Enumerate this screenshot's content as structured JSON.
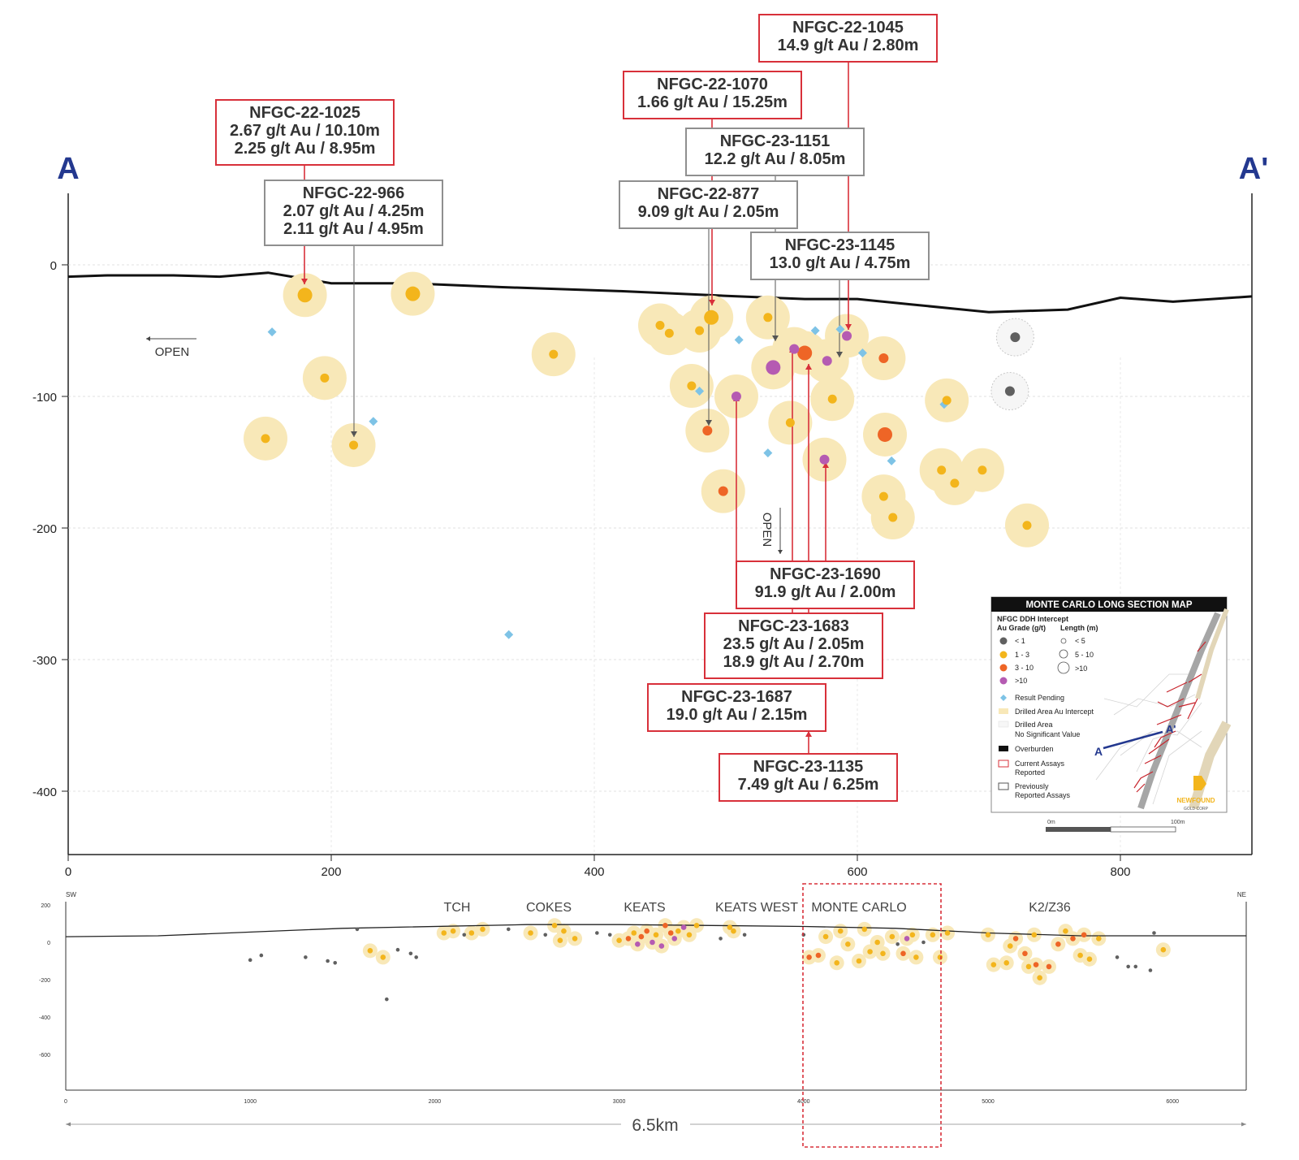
{
  "section": {
    "label_a": "A",
    "label_a_prime": "A'",
    "y_ticks": [
      "0",
      "-100",
      "-200",
      "-300",
      "-400"
    ],
    "x_ticks": [
      "0",
      "200",
      "400",
      "600",
      "800"
    ],
    "open_left": "OPEN",
    "open_down": "OPEN"
  },
  "surface_profile": [
    [
      0,
      -9
    ],
    [
      30,
      -8
    ],
    [
      80,
      -8
    ],
    [
      115,
      -9
    ],
    [
      152,
      -6
    ],
    [
      170,
      -9
    ],
    [
      200,
      -14
    ],
    [
      260,
      -14
    ],
    [
      330,
      -17
    ],
    [
      420,
      -20
    ],
    [
      510,
      -24
    ],
    [
      560,
      -26
    ],
    [
      600,
      -26
    ],
    [
      640,
      -30
    ],
    [
      700,
      -36
    ],
    [
      760,
      -34
    ],
    [
      800,
      -25
    ],
    [
      840,
      -28
    ],
    [
      900,
      -24
    ]
  ],
  "colors": {
    "halo": "#f8e8b8",
    "low": "#606060",
    "mid": "#f3b51c",
    "high": "#ee6526",
    "vhigh": "#b55bb2",
    "pending": "#7ec3e6",
    "current": "#d8303a",
    "previous": "#8f8f8f",
    "ink": "#23388f"
  },
  "intercepts": [
    {
      "x": 180,
      "y": -23,
      "grade": "mid",
      "len": "long"
    },
    {
      "x": 262,
      "y": -22,
      "grade": "mid",
      "len": "long"
    },
    {
      "x": 195,
      "y": -86,
      "grade": "mid",
      "len": "long"
    },
    {
      "x": 150,
      "y": -132,
      "grade": "mid",
      "len": "long"
    },
    {
      "x": 217,
      "y": -137,
      "grade": "mid",
      "len": "long"
    },
    {
      "x": 369,
      "y": -68,
      "grade": "mid",
      "len": "long"
    },
    {
      "x": 450,
      "y": -46,
      "grade": "mid",
      "len": "long"
    },
    {
      "x": 457,
      "y": -52,
      "grade": "mid",
      "len": "long"
    },
    {
      "x": 480,
      "y": -50,
      "grade": "mid",
      "len": "long"
    },
    {
      "x": 489,
      "y": -40,
      "grade": "mid",
      "len": "long"
    },
    {
      "x": 474,
      "y": -92,
      "grade": "mid",
      "len": "long"
    },
    {
      "x": 532,
      "y": -40,
      "grade": "mid",
      "len": "long"
    },
    {
      "x": 549,
      "y": -120,
      "grade": "mid",
      "len": "long"
    },
    {
      "x": 581,
      "y": -102,
      "grade": "mid",
      "len": "long"
    },
    {
      "x": 668,
      "y": -103,
      "grade": "mid",
      "len": "long"
    },
    {
      "x": 664,
      "y": -156,
      "grade": "mid",
      "len": "long"
    },
    {
      "x": 674,
      "y": -166,
      "grade": "mid",
      "len": "long"
    },
    {
      "x": 695,
      "y": -156,
      "grade": "mid",
      "len": "long"
    },
    {
      "x": 620,
      "y": -176,
      "grade": "mid",
      "len": "long"
    },
    {
      "x": 627,
      "y": -192,
      "grade": "mid",
      "len": "long"
    },
    {
      "x": 729,
      "y": -198,
      "grade": "mid",
      "len": "long"
    },
    {
      "x": 486,
      "y": -126,
      "grade": "high",
      "len": "long"
    },
    {
      "x": 498,
      "y": -172,
      "grade": "high",
      "len": "long"
    },
    {
      "x": 560,
      "y": -67,
      "grade": "high",
      "len": "long"
    },
    {
      "x": 620,
      "y": -71,
      "grade": "high",
      "len": "long"
    },
    {
      "x": 621,
      "y": -129,
      "grade": "high",
      "len": "long"
    },
    {
      "x": 508,
      "y": -100,
      "grade": "vhigh",
      "len": "long"
    },
    {
      "x": 536,
      "y": -78,
      "grade": "vhigh",
      "len": "long"
    },
    {
      "x": 552,
      "y": -64,
      "grade": "vhigh",
      "len": "long"
    },
    {
      "x": 577,
      "y": -73,
      "grade": "vhigh",
      "len": "long"
    },
    {
      "x": 592,
      "y": -54,
      "grade": "vhigh",
      "len": "long"
    },
    {
      "x": 575,
      "y": -148,
      "grade": "vhigh",
      "len": "long"
    },
    {
      "x": 720,
      "y": -55,
      "grade": "low",
      "len": "nsv"
    },
    {
      "x": 716,
      "y": -96,
      "grade": "low",
      "len": "nsv"
    }
  ],
  "pending": [
    {
      "x": 155,
      "y": -51
    },
    {
      "x": 232,
      "y": -119
    },
    {
      "x": 335,
      "y": -281
    },
    {
      "x": 480,
      "y": -96
    },
    {
      "x": 510,
      "y": -57
    },
    {
      "x": 532,
      "y": -143
    },
    {
      "x": 568,
      "y": -50
    },
    {
      "x": 587,
      "y": -49
    },
    {
      "x": 604,
      "y": -67
    },
    {
      "x": 626,
      "y": -149
    },
    {
      "x": 666,
      "y": -106
    }
  ],
  "callouts": [
    {
      "title": "NFGC-22-1045",
      "lines": [
        "14.9 g/t Au / 2.80m"
      ],
      "status": "current"
    },
    {
      "title": "NFGC-22-1070",
      "lines": [
        "1.66 g/t Au / 15.25m"
      ],
      "status": "current"
    },
    {
      "title": "NFGC-23-1151",
      "lines": [
        "12.2 g/t Au / 8.05m"
      ],
      "status": "previous"
    },
    {
      "title": "NFGC-22-877",
      "lines": [
        "9.09 g/t Au / 2.05m"
      ],
      "status": "previous"
    },
    {
      "title": "NFGC-23-1145",
      "lines": [
        "13.0 g/t Au / 4.75m"
      ],
      "status": "previous"
    },
    {
      "title": "NFGC-22-1025",
      "lines": [
        "2.67 g/t Au / 10.10m",
        "2.25 g/t Au / 8.95m"
      ],
      "status": "current"
    },
    {
      "title": "NFGC-22-966",
      "lines": [
        "2.07 g/t Au / 4.25m",
        "2.11 g/t Au / 4.95m"
      ],
      "status": "previous"
    },
    {
      "title": "NFGC-23-1690",
      "lines": [
        "91.9 g/t Au / 2.00m"
      ],
      "status": "current"
    },
    {
      "title": "NFGC-23-1683",
      "lines": [
        "23.5 g/t Au / 2.05m",
        "18.9 g/t Au / 2.70m"
      ],
      "status": "current"
    },
    {
      "title": "NFGC-23-1687",
      "lines": [
        "19.0 g/t Au / 2.15m"
      ],
      "status": "current"
    },
    {
      "title": "NFGC-23-1135",
      "lines": [
        "7.49 g/t Au / 6.25m"
      ],
      "status": "current"
    }
  ],
  "legend": {
    "title": "MONTE CARLO LONG SECTION MAP",
    "subtitle": "NFGC DDH Intercept",
    "grade_header": "Au Grade (g/t)",
    "length_header": "Length (m)",
    "grades": [
      "< 1",
      "1 - 3",
      "3 - 10",
      ">10"
    ],
    "lengths": [
      "< 5",
      "5 - 10",
      ">10"
    ],
    "items": [
      "Result Pending",
      "Drilled Area Au Intercept",
      "Drilled Area",
      "No Significant Value",
      "Overburden",
      "Current Assays",
      "Reported",
      "Previously",
      "Reported Assays"
    ],
    "map_label_a": "A",
    "map_label_a_prime": "A'",
    "scale_start": "0m",
    "scale_end": "100m",
    "logo_line1": "NEWFOUND",
    "logo_line2": "GOLD CORP"
  },
  "overview": {
    "sw": "SW",
    "ne": "NE",
    "y_ticks": [
      "200",
      "0",
      "-200",
      "-400",
      "-600"
    ],
    "x_ticks": [
      "0",
      "1000",
      "2000",
      "3000",
      "4000",
      "5000",
      "6000"
    ],
    "zones": [
      "TCH",
      "COKES",
      "KEATS",
      "KEATS WEST",
      "MONTE CARLO",
      "K2/Z36"
    ],
    "length": "6.5km",
    "profile": [
      [
        0,
        30
      ],
      [
        500,
        35
      ],
      [
        1500,
        75
      ],
      [
        2500,
        95
      ],
      [
        3000,
        95
      ],
      [
        3500,
        90
      ],
      [
        4000,
        85
      ],
      [
        4500,
        75
      ],
      [
        5000,
        50
      ],
      [
        5500,
        35
      ],
      [
        6000,
        35
      ],
      [
        6400,
        35
      ]
    ],
    "intercepts": [
      [
        1000,
        -95,
        "low"
      ],
      [
        1060,
        -70,
        "low"
      ],
      [
        1300,
        -80,
        "low"
      ],
      [
        1420,
        -100,
        "low"
      ],
      [
        1460,
        -110,
        "low"
      ],
      [
        1580,
        70,
        "low"
      ],
      [
        1650,
        -45,
        "mid"
      ],
      [
        1720,
        -80,
        "mid"
      ],
      [
        1740,
        -305,
        "low"
      ],
      [
        1800,
        -40,
        "low"
      ],
      [
        1870,
        -60,
        "low"
      ],
      [
        1900,
        -80,
        "low"
      ],
      [
        2050,
        50,
        "mid"
      ],
      [
        2100,
        60,
        "mid"
      ],
      [
        2160,
        40,
        "low"
      ],
      [
        2200,
        50,
        "mid"
      ],
      [
        2260,
        70,
        "mid"
      ],
      [
        2400,
        70,
        "low"
      ],
      [
        2520,
        50,
        "mid"
      ],
      [
        2600,
        40,
        "low"
      ],
      [
        2650,
        90,
        "mid"
      ],
      [
        2680,
        10,
        "mid"
      ],
      [
        2700,
        60,
        "mid"
      ],
      [
        2760,
        20,
        "mid"
      ],
      [
        2880,
        50,
        "low"
      ],
      [
        2950,
        40,
        "low"
      ],
      [
        3000,
        10,
        "mid"
      ],
      [
        3050,
        20,
        "high"
      ],
      [
        3080,
        50,
        "mid"
      ],
      [
        3100,
        -10,
        "vhigh"
      ],
      [
        3120,
        30,
        "high"
      ],
      [
        3150,
        60,
        "high"
      ],
      [
        3180,
        0,
        "vhigh"
      ],
      [
        3200,
        40,
        "mid"
      ],
      [
        3230,
        -20,
        "vhigh"
      ],
      [
        3250,
        90,
        "high"
      ],
      [
        3280,
        50,
        "high"
      ],
      [
        3300,
        20,
        "vhigh"
      ],
      [
        3320,
        60,
        "mid"
      ],
      [
        3350,
        80,
        "vhigh"
      ],
      [
        3380,
        40,
        "mid"
      ],
      [
        3420,
        90,
        "mid"
      ],
      [
        3550,
        20,
        "low"
      ],
      [
        3600,
        80,
        "mid"
      ],
      [
        3620,
        60,
        "mid"
      ],
      [
        3680,
        40,
        "low"
      ],
      [
        4000,
        40,
        "low"
      ],
      [
        4030,
        -80,
        "high"
      ],
      [
        4080,
        -70,
        "high"
      ],
      [
        4120,
        30,
        "mid"
      ],
      [
        4180,
        -110,
        "mid"
      ],
      [
        4200,
        60,
        "mid"
      ],
      [
        4240,
        -10,
        "mid"
      ],
      [
        4300,
        -100,
        "mid"
      ],
      [
        4330,
        70,
        "mid"
      ],
      [
        4360,
        -50,
        "mid"
      ],
      [
        4400,
        0,
        "mid"
      ],
      [
        4430,
        -60,
        "mid"
      ],
      [
        4480,
        30,
        "mid"
      ],
      [
        4510,
        -10,
        "low"
      ],
      [
        4540,
        -60,
        "high"
      ],
      [
        4560,
        20,
        "vhigh"
      ],
      [
        4590,
        40,
        "mid"
      ],
      [
        4610,
        -80,
        "mid"
      ],
      [
        4650,
        0,
        "low"
      ],
      [
        4700,
        40,
        "mid"
      ],
      [
        4740,
        -80,
        "mid"
      ],
      [
        4780,
        50,
        "mid"
      ],
      [
        5000,
        40,
        "mid"
      ],
      [
        5030,
        -120,
        "mid"
      ],
      [
        5100,
        -110,
        "mid"
      ],
      [
        5120,
        -20,
        "mid"
      ],
      [
        5150,
        20,
        "high"
      ],
      [
        5200,
        -60,
        "high"
      ],
      [
        5220,
        -130,
        "mid"
      ],
      [
        5250,
        40,
        "mid"
      ],
      [
        5260,
        -120,
        "high"
      ],
      [
        5280,
        -190,
        "mid"
      ],
      [
        5330,
        -130,
        "high"
      ],
      [
        5380,
        -10,
        "high"
      ],
      [
        5420,
        60,
        "mid"
      ],
      [
        5460,
        20,
        "high"
      ],
      [
        5500,
        -70,
        "mid"
      ],
      [
        5520,
        40,
        "high"
      ],
      [
        5550,
        -90,
        "mid"
      ],
      [
        5600,
        20,
        "mid"
      ],
      [
        5700,
        -80,
        "low"
      ],
      [
        5760,
        -130,
        "low"
      ],
      [
        5800,
        -130,
        "low"
      ],
      [
        5880,
        -150,
        "low"
      ],
      [
        5900,
        50,
        "low"
      ],
      [
        5950,
        -40,
        "mid"
      ]
    ]
  }
}
